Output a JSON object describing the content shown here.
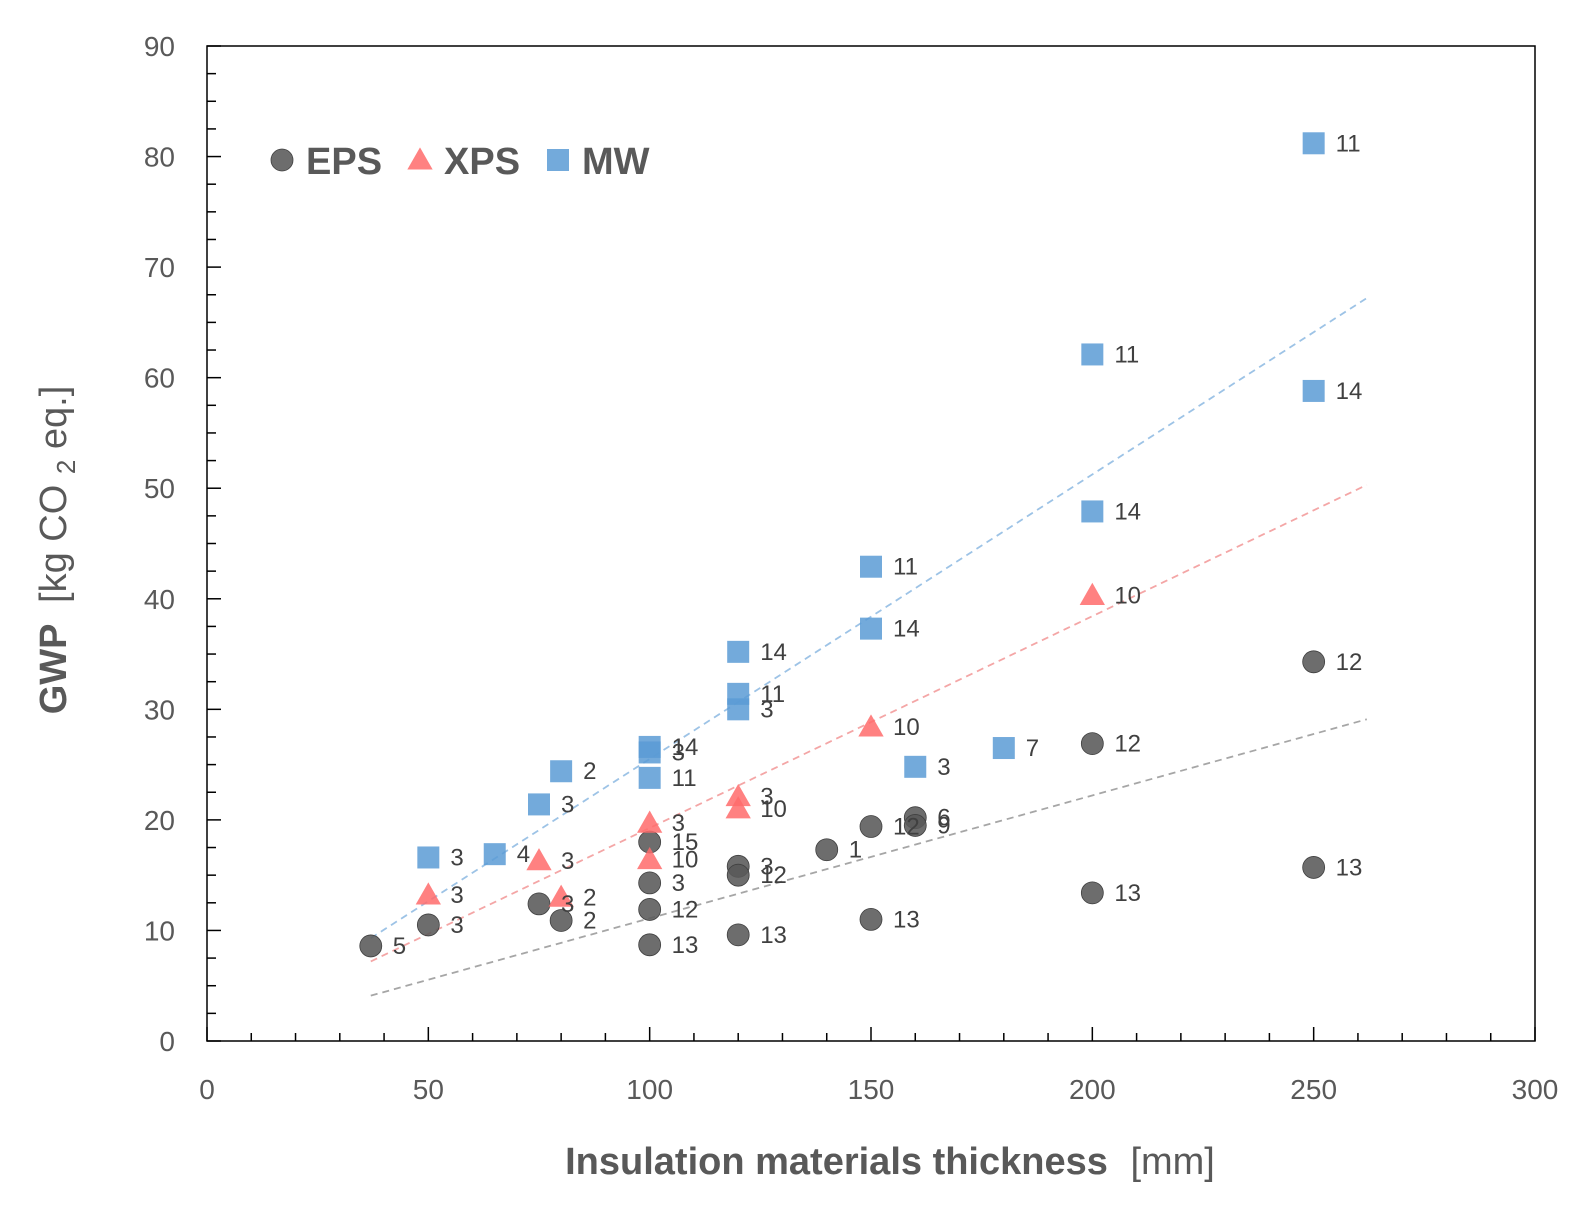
{
  "chart_data": {
    "type": "scatter",
    "xlabel_bold": "Insulation materials thickness",
    "xlabel_unit": "[mm]",
    "ylabel_bold": "GWP",
    "ylabel_unit_pre": "[kg CO",
    "ylabel_unit_sub": "2",
    "ylabel_unit_post": " eq.]",
    "xlim": [
      0,
      300
    ],
    "ylim": [
      0,
      90
    ],
    "x_major_ticks": [
      0,
      50,
      100,
      150,
      200,
      250,
      300
    ],
    "y_major_ticks": [
      0,
      10,
      20,
      30,
      40,
      50,
      60,
      70,
      80,
      90
    ],
    "x_tick_labels": [
      "0",
      "50",
      "100",
      "150",
      "200",
      "250",
      "300"
    ],
    "y_tick_labels": [
      "0",
      "10",
      "20",
      "30",
      "40",
      "50",
      "60",
      "70",
      "80",
      "90"
    ],
    "x_minor_step": 10,
    "y_minor_step": 2.5,
    "legend_position": "top-left",
    "grid": false,
    "series": [
      {
        "name": "EPS",
        "marker": "circle",
        "color": "#595959",
        "points": [
          {
            "x": 37,
            "y": 8.6,
            "label": "5"
          },
          {
            "x": 50,
            "y": 10.5,
            "label": "3"
          },
          {
            "x": 75,
            "y": 12.4,
            "label": "3"
          },
          {
            "x": 80,
            "y": 10.9,
            "label": "2"
          },
          {
            "x": 100,
            "y": 18.0,
            "label": "15"
          },
          {
            "x": 100,
            "y": 14.3,
            "label": "3"
          },
          {
            "x": 100,
            "y": 11.9,
            "label": "12"
          },
          {
            "x": 100,
            "y": 8.7,
            "label": "13"
          },
          {
            "x": 120,
            "y": 15.8,
            "label": "3"
          },
          {
            "x": 120,
            "y": 15.0,
            "label": "12"
          },
          {
            "x": 120,
            "y": 9.6,
            "label": "13"
          },
          {
            "x": 140,
            "y": 17.3,
            "label": "1"
          },
          {
            "x": 150,
            "y": 19.4,
            "label": "12"
          },
          {
            "x": 150,
            "y": 11.0,
            "label": "13"
          },
          {
            "x": 160,
            "y": 20.2,
            "label": "6"
          },
          {
            "x": 160,
            "y": 19.5,
            "label": "9"
          },
          {
            "x": 200,
            "y": 26.9,
            "label": "12"
          },
          {
            "x": 200,
            "y": 13.4,
            "label": "13"
          },
          {
            "x": 250,
            "y": 34.3,
            "label": "12"
          },
          {
            "x": 250,
            "y": 15.7,
            "label": "13"
          }
        ],
        "trendline": {
          "x": [
            37,
            262
          ],
          "y": [
            4.1,
            29.1
          ],
          "color": "#a6a6a6"
        }
      },
      {
        "name": "XPS",
        "marker": "triangle",
        "color": "#ff6b6b",
        "points": [
          {
            "x": 50,
            "y": 13.2,
            "label": "3"
          },
          {
            "x": 75,
            "y": 16.3,
            "label": "3"
          },
          {
            "x": 80,
            "y": 13.0,
            "label": "2"
          },
          {
            "x": 100,
            "y": 19.7,
            "label": "3"
          },
          {
            "x": 100,
            "y": 16.4,
            "label": "10"
          },
          {
            "x": 120,
            "y": 22.1,
            "label": "3"
          },
          {
            "x": 120,
            "y": 21.0,
            "label": "10"
          },
          {
            "x": 150,
            "y": 28.4,
            "label": "10"
          },
          {
            "x": 200,
            "y": 40.3,
            "label": "10"
          }
        ],
        "trendline": {
          "x": [
            37,
            262
          ],
          "y": [
            7.2,
            50.3
          ],
          "color": "#f4a6a6"
        }
      },
      {
        "name": "MW",
        "marker": "square",
        "color": "#5b9bd5",
        "points": [
          {
            "x": 50,
            "y": 16.6,
            "label": "3"
          },
          {
            "x": 65,
            "y": 16.9,
            "label": "4"
          },
          {
            "x": 75,
            "y": 21.4,
            "label": "3"
          },
          {
            "x": 80,
            "y": 24.4,
            "label": "2"
          },
          {
            "x": 100,
            "y": 26.6,
            "label": "14"
          },
          {
            "x": 100,
            "y": 26.1,
            "label": "3"
          },
          {
            "x": 100,
            "y": 23.8,
            "label": "11"
          },
          {
            "x": 120,
            "y": 35.2,
            "label": "14"
          },
          {
            "x": 120,
            "y": 31.4,
            "label": "11"
          },
          {
            "x": 120,
            "y": 30.0,
            "label": "3"
          },
          {
            "x": 150,
            "y": 42.9,
            "label": "11"
          },
          {
            "x": 150,
            "y": 37.3,
            "label": "14"
          },
          {
            "x": 160,
            "y": 24.8,
            "label": "3"
          },
          {
            "x": 180,
            "y": 26.5,
            "label": "7"
          },
          {
            "x": 200,
            "y": 62.1,
            "label": "11"
          },
          {
            "x": 200,
            "y": 47.9,
            "label": "14"
          },
          {
            "x": 250,
            "y": 81.2,
            "label": "11"
          },
          {
            "x": 250,
            "y": 58.8,
            "label": "14"
          }
        ],
        "trendline": {
          "x": [
            37,
            262
          ],
          "y": [
            9.3,
            67.2
          ],
          "color": "#9dc3e6"
        }
      }
    ]
  }
}
